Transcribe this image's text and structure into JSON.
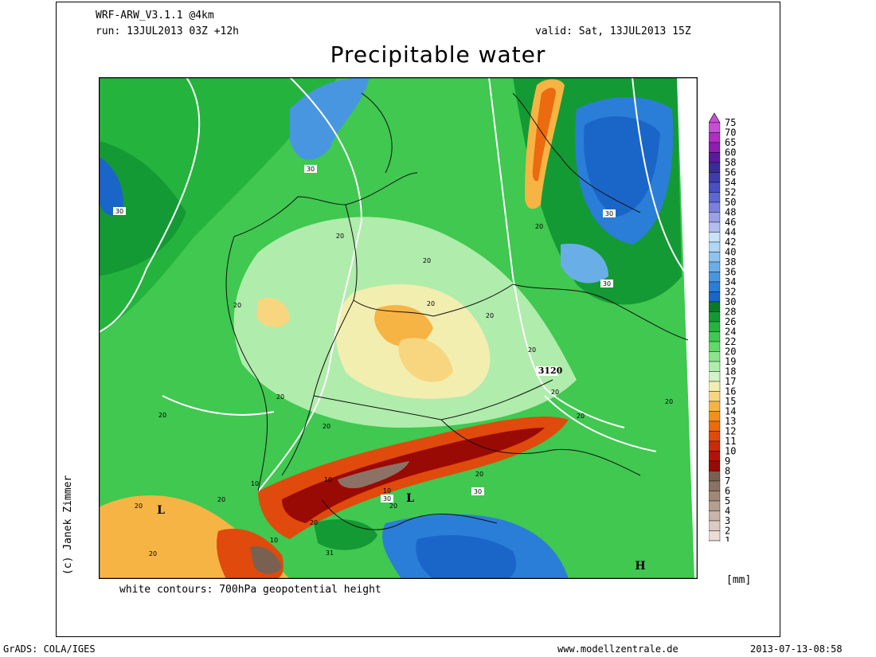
{
  "header": {
    "model": "WRF-ARW_V3.1.1 @4km",
    "run": "run: 13JUL2013 03Z +12h",
    "valid": "valid: Sat, 13JUL2013 15Z",
    "title": "Precipitable water"
  },
  "caption": "white contours: 700hPa geopotential height",
  "unit": "[mm]",
  "copyright": "(c) Janek Zimmer",
  "footer": {
    "grads": "GrADS: COLA/IGES",
    "website": "www.modellzentrale.de",
    "timestamp": "2013-07-13-08:58"
  },
  "map": {
    "pressure_labels": [
      {
        "text": "L",
        "id": "low-west"
      },
      {
        "text": "L",
        "id": "low-alps"
      },
      {
        "text": "H",
        "id": "high-southeast"
      }
    ],
    "contour_labels": [
      "30",
      "30",
      "30",
      "30",
      "30",
      "30",
      "20",
      "20",
      "20",
      "20",
      "20",
      "20",
      "20",
      "20",
      "20",
      "20",
      "20",
      "20",
      "20",
      "20",
      "20",
      "20",
      "20",
      "20",
      "20",
      "10",
      "10",
      "10",
      "10",
      "31",
      "3120"
    ]
  },
  "colorbar": {
    "levels": [
      "75",
      "70",
      "65",
      "60",
      "58",
      "56",
      "54",
      "52",
      "50",
      "48",
      "46",
      "44",
      "42",
      "40",
      "38",
      "36",
      "34",
      "32",
      "30",
      "28",
      "26",
      "24",
      "22",
      "20",
      "19",
      "18",
      "17",
      "16",
      "15",
      "14",
      "13",
      "12",
      "11",
      "10",
      "9",
      "8",
      "7",
      "6",
      "5",
      "4",
      "3",
      "2",
      "1"
    ],
    "colors": [
      "#c84fd4",
      "#b02ec0",
      "#8a1fb0",
      "#5a1a9c",
      "#3a2a9a",
      "#3e3cb0",
      "#4a50c2",
      "#5e66d2",
      "#7a80dc",
      "#9aa0e6",
      "#b4bcf0",
      "#c8e2f8",
      "#b0d6f4",
      "#8cc4f0",
      "#6aaee8",
      "#4896e0",
      "#2a7ed8",
      "#1a66c8",
      "#0a7a2a",
      "#149a34",
      "#24b43e",
      "#40c850",
      "#62d866",
      "#8ce48a",
      "#b0ecac",
      "#d2f2c8",
      "#f2eeb0",
      "#f8d680",
      "#f6b444",
      "#f2901c",
      "#ec6a10",
      "#e04a0c",
      "#cc2a08",
      "#b41208",
      "#9a0a04",
      "#7a6050",
      "#8c7264",
      "#a08878",
      "#b49e90",
      "#c8b4a8",
      "#dccac2",
      "#ecdcd6",
      "#faf2ee"
    ]
  }
}
